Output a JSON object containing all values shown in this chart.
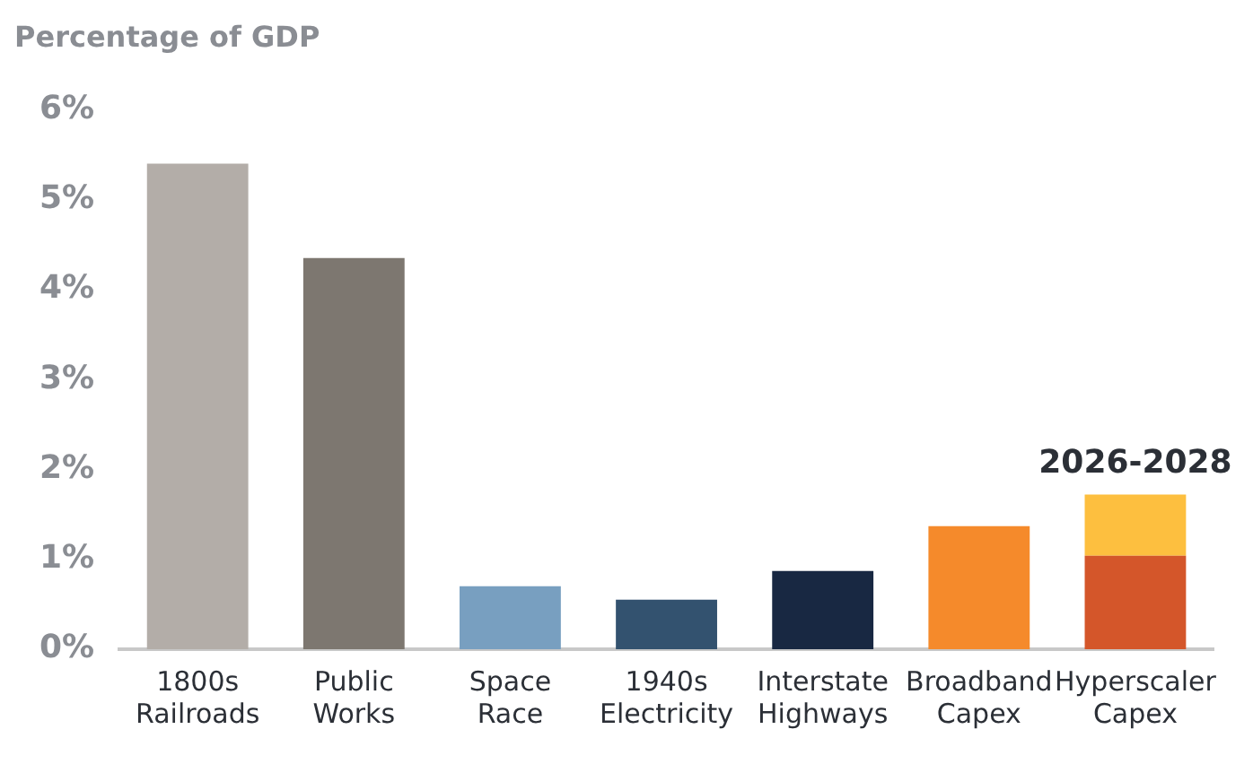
{
  "chart_data": {
    "type": "bar",
    "title": "Percentage of GDP",
    "stacked": true,
    "legend": false,
    "grid": false,
    "categories": [
      "1800s Railroads",
      "Public Works",
      "Space Race",
      "1940s Electricity",
      "Interstate Highways",
      "Broadband Capex",
      "Hyperscaler Capex"
    ],
    "series": [
      {
        "colors": [
          "#b3ada8",
          "#7d7770",
          "#789fc0",
          "#33526f",
          "#182842",
          "#f58a2b",
          "#d4562a"
        ],
        "values": [
          5.4,
          4.35,
          0.7,
          0.55,
          0.87,
          1.37,
          1.04
        ]
      },
      {
        "colors": [
          null,
          null,
          null,
          null,
          null,
          null,
          "#fdbf3f"
        ],
        "values": [
          null,
          null,
          null,
          null,
          null,
          null,
          0.68
        ]
      }
    ],
    "ylim": [
      0,
      6
    ],
    "yticks": [
      {
        "value": 0,
        "label": "0%"
      },
      {
        "value": 1,
        "label": "1%"
      },
      {
        "value": 2,
        "label": "2%"
      },
      {
        "value": 3,
        "label": "3%"
      },
      {
        "value": 4,
        "label": "4%"
      },
      {
        "value": 5,
        "label": "5%"
      },
      {
        "value": 6,
        "label": "6%"
      }
    ],
    "annotations": [
      {
        "text": "2026-2028",
        "x": "Hyperscaler Capex",
        "y": 1.72
      }
    ]
  }
}
